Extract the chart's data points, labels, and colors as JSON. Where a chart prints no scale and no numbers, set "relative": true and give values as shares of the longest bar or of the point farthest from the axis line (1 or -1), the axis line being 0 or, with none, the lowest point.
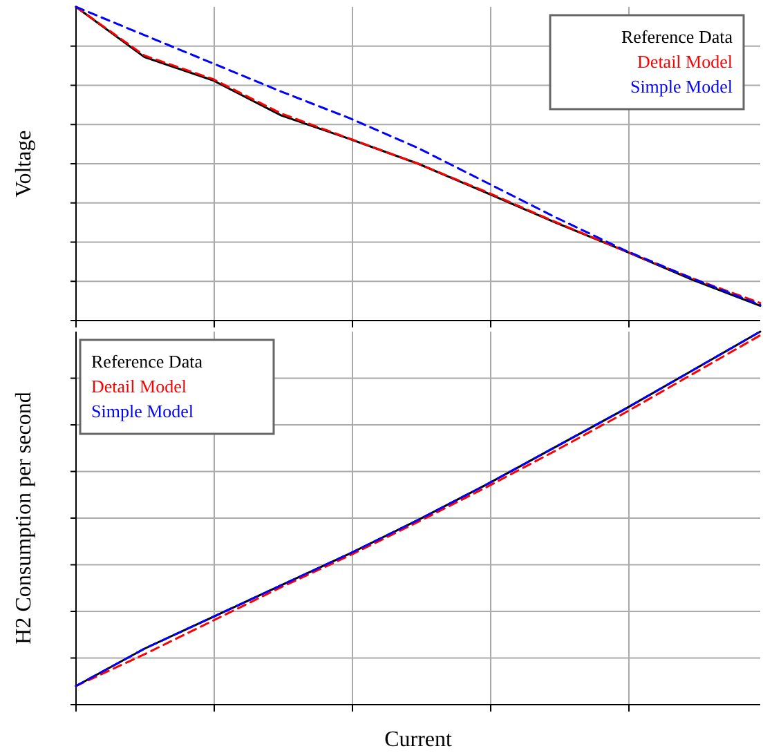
{
  "chart_data": [
    {
      "type": "line",
      "ylabel": "Voltage",
      "relative": true,
      "categories": [
        null,
        null,
        null,
        null,
        null,
        null,
        null,
        null,
        null,
        null,
        null
      ],
      "grid": true,
      "legend": "top right",
      "series": [
        {
          "name": "Reference Data",
          "color": "#000000",
          "line_style": "solid",
          "values": [
            1.0,
            0.84,
            0.766,
            0.654,
            0.579,
            0.5,
            0.407,
            0.313,
            0.224,
            0.131,
            0.047
          ]
        },
        {
          "name": "Detail Model",
          "color": "#ff0000",
          "line_style": "dashed",
          "values": [
            1.0,
            0.845,
            0.77,
            0.66,
            0.58,
            0.5,
            0.41,
            0.315,
            0.224,
            0.135,
            0.056
          ]
        },
        {
          "name": "Simple Model",
          "color": "#0000ff",
          "line_style": "dashed",
          "values": [
            1.0,
            0.91,
            0.82,
            0.73,
            0.645,
            0.55,
            0.44,
            0.33,
            0.226,
            0.135,
            0.05
          ]
        }
      ]
    },
    {
      "type": "line",
      "ylabel": "H2 Consumption per second",
      "xlabel": "Current",
      "relative": true,
      "categories": [
        null,
        null,
        null,
        null,
        null,
        null,
        null,
        null,
        null,
        null,
        null
      ],
      "grid": true,
      "legend": "top left",
      "series": [
        {
          "name": "Reference Data",
          "color": "#000000",
          "line_style": "solid",
          "values": [
            0.05,
            0.15,
            0.235,
            0.32,
            0.405,
            0.495,
            0.59,
            0.69,
            0.79,
            0.895,
            1.0
          ]
        },
        {
          "name": "Detail Model",
          "color": "#ff0000",
          "line_style": "dashed",
          "values": [
            0.05,
            0.135,
            0.225,
            0.315,
            0.4,
            0.49,
            0.583,
            0.68,
            0.78,
            0.885,
            0.99
          ]
        },
        {
          "name": "Simple Model",
          "color": "#0000ff",
          "line_style": "dashed",
          "values": [
            0.05,
            0.15,
            0.235,
            0.32,
            0.405,
            0.495,
            0.59,
            0.69,
            0.79,
            0.895,
            1.0
          ]
        }
      ]
    }
  ]
}
